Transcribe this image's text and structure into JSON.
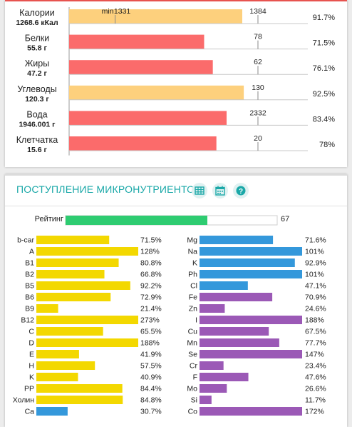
{
  "macro": {
    "chart_data": {
      "type": "bar",
      "orientation": "horizontal",
      "max_label": "min",
      "categories": [
        "Калории",
        "Белки",
        "Жиры",
        "Углеводы",
        "Вода",
        "Клетчатка"
      ],
      "amounts": [
        "1268.6 кКал",
        "55.8 г",
        "47.2 г",
        "120.3 г",
        "1946.001 г",
        "15.6 г"
      ],
      "norm_labels": [
        "1331",
        "78",
        "62",
        "130",
        "2332",
        "20"
      ],
      "percent": [
        91.7,
        71.5,
        76.1,
        92.5,
        83.4,
        78
      ],
      "percent_labels": [
        "91.7%",
        "71.5%",
        "76.1%",
        "92.5%",
        "83.4%",
        "78%"
      ],
      "bar_colors": [
        "#fdd07d",
        "#fb6b6b",
        "#fb6b6b",
        "#fdd07d",
        "#fb6b6b",
        "#fb6b6b"
      ],
      "upper_marker_label": "1384",
      "xlim_percent": [
        0,
        156
      ]
    }
  },
  "micro": {
    "title": "ПОСТУПЛЕНИЕ МИКРОНУТРИЕНТОВ",
    "icons": [
      "table-icon",
      "calendar-icon",
      "help-icon"
    ],
    "rating": {
      "label": "Рейтинг",
      "value": 67,
      "value_label": "67",
      "color": "#2ecc71"
    },
    "chart_data": [
      {
        "type": "bar",
        "orientation": "horizontal",
        "name": "vitamins",
        "categories": [
          "b-car",
          "A",
          "B1",
          "B2",
          "B5",
          "B6",
          "B9",
          "B12",
          "C",
          "D",
          "E",
          "H",
          "K",
          "PP",
          "Холин",
          "Ca"
        ],
        "values": [
          71.5,
          128,
          80.8,
          66.8,
          92.2,
          72.9,
          21.4,
          273,
          65.5,
          188,
          41.9,
          57.5,
          40.9,
          84.4,
          84.8,
          30.7
        ],
        "value_labels": [
          "71.5%",
          "128%",
          "80.8%",
          "66.8%",
          "92.2%",
          "72.9%",
          "21.4%",
          "273%",
          "65.5%",
          "188%",
          "41.9%",
          "57.5%",
          "40.9%",
          "84.4%",
          "84.8%",
          "30.7%"
        ],
        "colors": [
          "#f3d800",
          "#f3d800",
          "#f3d800",
          "#f3d800",
          "#f3d800",
          "#f3d800",
          "#f3d800",
          "#f3d800",
          "#f3d800",
          "#f3d800",
          "#f3d800",
          "#f3d800",
          "#f3d800",
          "#f3d800",
          "#f3d800",
          "#3498db"
        ],
        "xlim": [
          0,
          100
        ]
      },
      {
        "type": "bar",
        "orientation": "horizontal",
        "name": "minerals",
        "categories": [
          "Mg",
          "Na",
          "K",
          "Ph",
          "Cl",
          "Fe",
          "Zn",
          "I",
          "Cu",
          "Mn",
          "Se",
          "Cr",
          "F",
          "Mo",
          "Si",
          "Co"
        ],
        "values": [
          71.6,
          101,
          92.9,
          101,
          47.1,
          70.9,
          24.6,
          188,
          67.5,
          77.7,
          147,
          23.4,
          47.6,
          26.6,
          11.7,
          172
        ],
        "value_labels": [
          "71.6%",
          "101%",
          "92.9%",
          "101%",
          "47.1%",
          "70.9%",
          "24.6%",
          "188%",
          "67.5%",
          "77.7%",
          "147%",
          "23.4%",
          "47.6%",
          "26.6%",
          "11.7%",
          "172%"
        ],
        "colors": [
          "#3498db",
          "#3498db",
          "#3498db",
          "#3498db",
          "#3498db",
          "#9b59b6",
          "#9b59b6",
          "#9b59b6",
          "#9b59b6",
          "#9b59b6",
          "#9b59b6",
          "#9b59b6",
          "#9b59b6",
          "#9b59b6",
          "#9b59b6",
          "#9b59b6"
        ],
        "xlim": [
          0,
          100
        ]
      }
    ]
  }
}
